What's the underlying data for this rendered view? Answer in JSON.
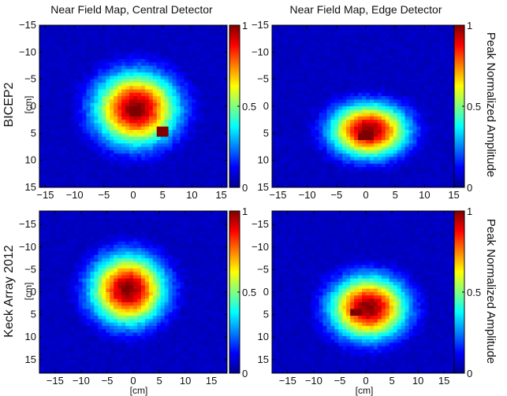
{
  "colors": {
    "colormap_stops": [
      "#00008f",
      "#0000ff",
      "#0080ff",
      "#00ffff",
      "#80ff80",
      "#ffff00",
      "#ff8000",
      "#ff0000",
      "#800000"
    ],
    "background": "#ffffff",
    "axis": "#000000"
  },
  "rows": {
    "top": "BICEP2",
    "bottom": "Keck Array 2012"
  },
  "colorbar_label": "Peak Normalized Amplitude",
  "chart_data": [
    {
      "type": "heatmap",
      "title": "Near Field Map, Central Detector",
      "xlabel": "",
      "ylabel": "[cm]",
      "xlim": [
        -16,
        16
      ],
      "ylim": [
        -15,
        15
      ],
      "xticks": [
        "−15",
        "−10",
        "−5",
        "0",
        "5",
        "10",
        "15"
      ],
      "yticks": [
        "−15",
        "−10",
        "−5",
        "0",
        "5",
        "10",
        "15"
      ],
      "color_range": [
        0,
        1
      ],
      "colorbar_ticks": [
        "0",
        "0.5",
        "1"
      ],
      "blob": {
        "center_x": 0.5,
        "center_y": 0.5,
        "radius_x": 11.0,
        "radius_y": 10.5,
        "peak": 1.0,
        "falloff": 2.6,
        "spots": [
          {
            "x": 0.3,
            "y": 0.8,
            "v": 0.1
          },
          {
            "x": 5.0,
            "y": 4.7,
            "v": 0.05
          }
        ]
      }
    },
    {
      "type": "heatmap",
      "title": "Near Field Map, Edge Detector",
      "xlabel": "",
      "ylabel": "",
      "xlim": [
        -16,
        16
      ],
      "ylim": [
        -15,
        15
      ],
      "xticks": [
        "−15",
        "−10",
        "−5",
        "0",
        "5",
        "10",
        "15"
      ],
      "yticks": [
        "−15",
        "−10",
        "−5",
        "0",
        "5",
        "10",
        "15"
      ],
      "color_range": [
        0,
        1
      ],
      "colorbar_ticks": [
        "0",
        "0.5",
        "1"
      ],
      "blob": {
        "center_x": 0.5,
        "center_y": 4.5,
        "radius_x": 9.0,
        "radius_y": 6.8,
        "peak": 1.0,
        "falloff": 2.0,
        "spots": [
          {
            "x": 0.0,
            "y": 5.5,
            "v": 0.05
          }
        ]
      }
    },
    {
      "type": "heatmap",
      "title": "",
      "xlabel": "[cm]",
      "ylabel": "[cm]",
      "xlim": [
        -18,
        18
      ],
      "ylim": [
        -18,
        18
      ],
      "xticks": [
        "−15",
        "−10",
        "−5",
        "0",
        "5",
        "10",
        "15"
      ],
      "yticks": [
        "−15",
        "−10",
        "−5",
        "0",
        "5",
        "10",
        "15"
      ],
      "color_range": [
        0,
        1
      ],
      "colorbar_ticks": [
        "0",
        "0.5",
        "1"
      ],
      "blob": {
        "center_x": -1.0,
        "center_y": -0.5,
        "radius_x": 12.0,
        "radius_y": 13.0,
        "peak": 1.0,
        "falloff": 3.0,
        "spots": []
      }
    },
    {
      "type": "heatmap",
      "title": "",
      "xlabel": "[cm]",
      "ylabel": "",
      "xlim": [
        -18,
        18
      ],
      "ylim": [
        -18,
        18
      ],
      "xticks": [
        "−15",
        "−10",
        "−5",
        "0",
        "5",
        "10",
        "15"
      ],
      "yticks": [
        "−15",
        "−10",
        "−5",
        "0",
        "5",
        "10",
        "15"
      ],
      "color_range": [
        0,
        1
      ],
      "colorbar_ticks": [
        "0",
        "0.5",
        "1"
      ],
      "blob": {
        "center_x": 0.5,
        "center_y": 3.5,
        "radius_x": 10.5,
        "radius_y": 10.0,
        "peak": 1.0,
        "falloff": 2.2,
        "spots": [
          {
            "x": -2.0,
            "y": 4.5,
            "v": 0.1
          }
        ]
      }
    }
  ]
}
